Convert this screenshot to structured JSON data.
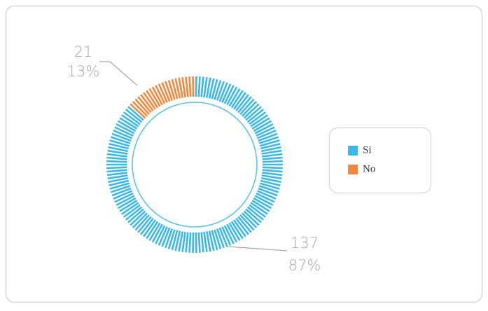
{
  "chart_data": {
    "type": "donut",
    "series": [
      {
        "name": "Si",
        "color": "#3db8e6",
        "values": [
          137
        ],
        "value_labels": [
          "137"
        ],
        "percent_labels": [
          "87%"
        ]
      },
      {
        "name": "No",
        "color": "#f0883e",
        "values": [
          21
        ],
        "value_labels": [
          "21"
        ],
        "percent_labels": [
          "13%"
        ]
      }
    ],
    "legend": "right"
  }
}
